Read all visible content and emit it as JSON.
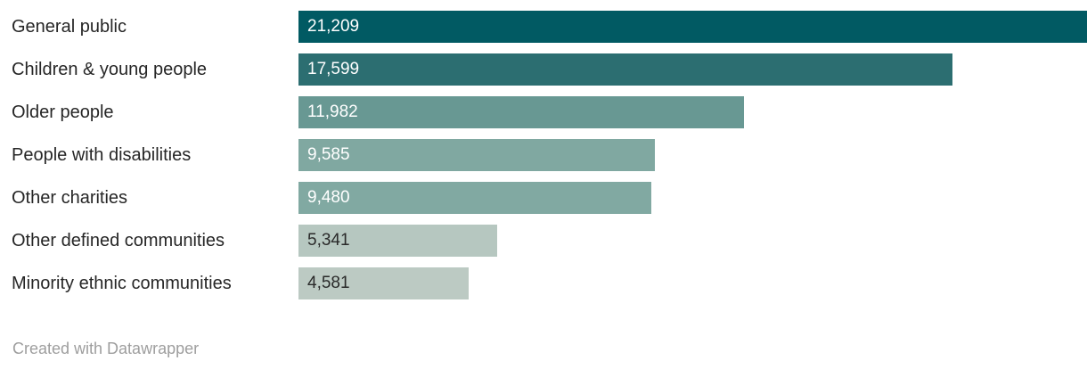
{
  "chart_data": {
    "type": "bar",
    "orientation": "horizontal",
    "title": "",
    "xlabel": "",
    "ylabel": "",
    "xlim": [
      0,
      21209
    ],
    "grid": false,
    "legend": false,
    "categories": [
      "General public",
      "Children & young people",
      "Older people",
      "People with disabilities",
      "Other charities",
      "Other defined communities",
      "Minority ethnic communities"
    ],
    "values": [
      21209,
      17599,
      11982,
      9585,
      9480,
      5341,
      4581
    ],
    "value_labels": [
      "21,209",
      "17,599",
      "11,982",
      "9,585",
      "9,480",
      "5,341",
      "4,581"
    ],
    "bar_colors": [
      "#015a63",
      "#2c6e71",
      "#689893",
      "#80a8a1",
      "#81a9a2",
      "#b6c7c0",
      "#bccac3"
    ],
    "value_label_colors": [
      "#ffffff",
      "#ffffff",
      "#ffffff",
      "#ffffff",
      "#ffffff",
      "#2a2a2a",
      "#2a2a2a"
    ]
  },
  "footer": {
    "attribution": "Created with Datawrapper"
  },
  "colors": {
    "category_label_text": "#262626",
    "footer_text": "#9e9e9e",
    "background": "#ffffff"
  }
}
